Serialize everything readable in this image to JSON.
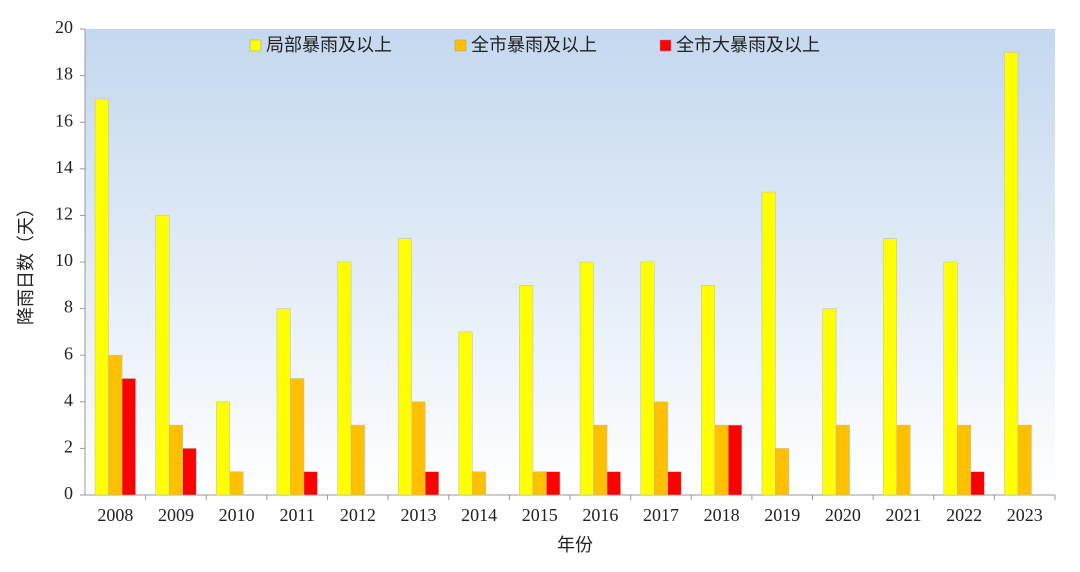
{
  "chart_data": {
    "type": "bar",
    "x_label": "年份",
    "y_label": "降雨日数（天）",
    "categories": [
      "2008",
      "2009",
      "2010",
      "2011",
      "2012",
      "2013",
      "2014",
      "2015",
      "2016",
      "2017",
      "2018",
      "2019",
      "2020",
      "2021",
      "2022",
      "2023"
    ],
    "series": [
      {
        "name": "局部暴雨及以上",
        "color": "#ffff00",
        "values": [
          17,
          12,
          4,
          8,
          10,
          11,
          7,
          9,
          10,
          10,
          9,
          13,
          8,
          11,
          10,
          19
        ]
      },
      {
        "name": "全市暴雨及以上",
        "color": "#ffc000",
        "values": [
          6,
          3,
          1,
          5,
          3,
          4,
          1,
          1,
          3,
          4,
          3,
          2,
          3,
          3,
          3,
          3
        ]
      },
      {
        "name": "全市大暴雨及以上",
        "color": "#ff0000",
        "values": [
          5,
          2,
          0,
          1,
          0,
          1,
          0,
          1,
          1,
          1,
          3,
          0,
          0,
          0,
          1,
          0
        ]
      }
    ],
    "ylim": [
      0,
      20
    ],
    "yticks": [
      0,
      2,
      4,
      6,
      8,
      10,
      12,
      14,
      16,
      18,
      20
    ],
    "legend": "top"
  }
}
